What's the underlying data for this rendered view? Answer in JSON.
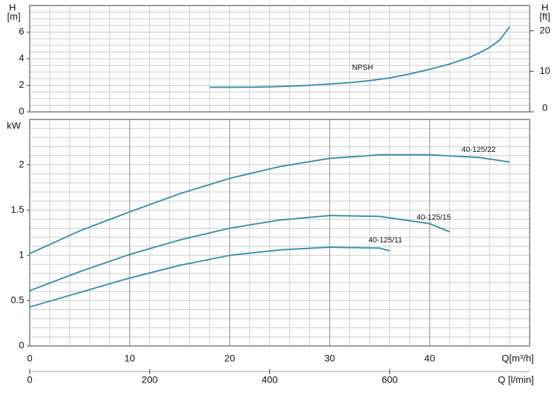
{
  "chart_data": [
    {
      "type": "line",
      "ylabel": "H",
      "yunit": "[m]",
      "y2label": "H",
      "y2unit": "[ft]",
      "xlim": [
        0,
        50
      ],
      "ylim": [
        0,
        8
      ],
      "y2lim": [
        0,
        26.25
      ],
      "yticks": [
        0,
        2,
        4,
        6
      ],
      "y2ticks": [
        0,
        10,
        20
      ],
      "xgrid": [
        0,
        2,
        4,
        6,
        8,
        10,
        12,
        14,
        16,
        18,
        20,
        22,
        24,
        26,
        28,
        30,
        32,
        34,
        36,
        38,
        40,
        42,
        44,
        46,
        48,
        50
      ],
      "ygrid": [
        0,
        0.5,
        1,
        1.5,
        2,
        2.5,
        3,
        3.5,
        4,
        4.5,
        5,
        5.5,
        6,
        6.5,
        7,
        7.5,
        8
      ],
      "grid": true,
      "series": [
        {
          "name": "NPSH",
          "color": "#3b8ca6",
          "x": [
            18,
            20,
            22,
            24,
            26,
            28,
            30,
            32,
            34,
            36,
            38,
            40,
            42,
            44,
            45,
            46,
            47,
            48
          ],
          "values": [
            1.85,
            1.85,
            1.86,
            1.88,
            1.93,
            2.0,
            2.1,
            2.2,
            2.35,
            2.55,
            2.85,
            3.2,
            3.6,
            4.1,
            4.45,
            4.85,
            5.4,
            6.4
          ]
        }
      ]
    },
    {
      "type": "line",
      "ylabel": "kW",
      "xlabel": "Q[m³/h]",
      "x2label": "Q [l/min]",
      "xlim": [
        0,
        50
      ],
      "ylim": [
        0,
        2.5
      ],
      "x2lim": [
        0,
        833.3
      ],
      "xticks": [
        0,
        10,
        20,
        30,
        40
      ],
      "yticks": [
        0,
        0.5,
        1,
        1.5,
        2
      ],
      "x2ticks": [
        0,
        200,
        400,
        600
      ],
      "xgrid": [
        0,
        2,
        4,
        6,
        8,
        10,
        12,
        14,
        16,
        18,
        20,
        22,
        24,
        26,
        28,
        30,
        32,
        34,
        36,
        38,
        40,
        42,
        44,
        46,
        48,
        50
      ],
      "ygrid": [
        0,
        0.1,
        0.2,
        0.3,
        0.4,
        0.5,
        0.6,
        0.7,
        0.8,
        0.9,
        1,
        1.1,
        1.2,
        1.3,
        1.4,
        1.5,
        1.6,
        1.7,
        1.8,
        1.9,
        2,
        2.1,
        2.2,
        2.3,
        2.4,
        2.5
      ],
      "grid": true,
      "series": [
        {
          "name": "40-125/22",
          "color": "#3b8ca6",
          "x": [
            0,
            5,
            10,
            15,
            20,
            25,
            30,
            35,
            40,
            45,
            48
          ],
          "values": [
            1.02,
            1.27,
            1.48,
            1.68,
            1.85,
            1.98,
            2.07,
            2.11,
            2.11,
            2.08,
            2.03
          ]
        },
        {
          "name": "40-125/15",
          "color": "#3b8ca6",
          "x": [
            0,
            5,
            10,
            15,
            20,
            25,
            30,
            35,
            40,
            42
          ],
          "values": [
            0.61,
            0.82,
            1.01,
            1.17,
            1.3,
            1.39,
            1.44,
            1.43,
            1.35,
            1.26
          ]
        },
        {
          "name": "40-125/11",
          "color": "#3b8ca6",
          "x": [
            0,
            5,
            10,
            15,
            20,
            25,
            30,
            35,
            36
          ],
          "values": [
            0.43,
            0.59,
            0.75,
            0.89,
            1.0,
            1.06,
            1.09,
            1.08,
            1.05
          ]
        }
      ]
    }
  ]
}
